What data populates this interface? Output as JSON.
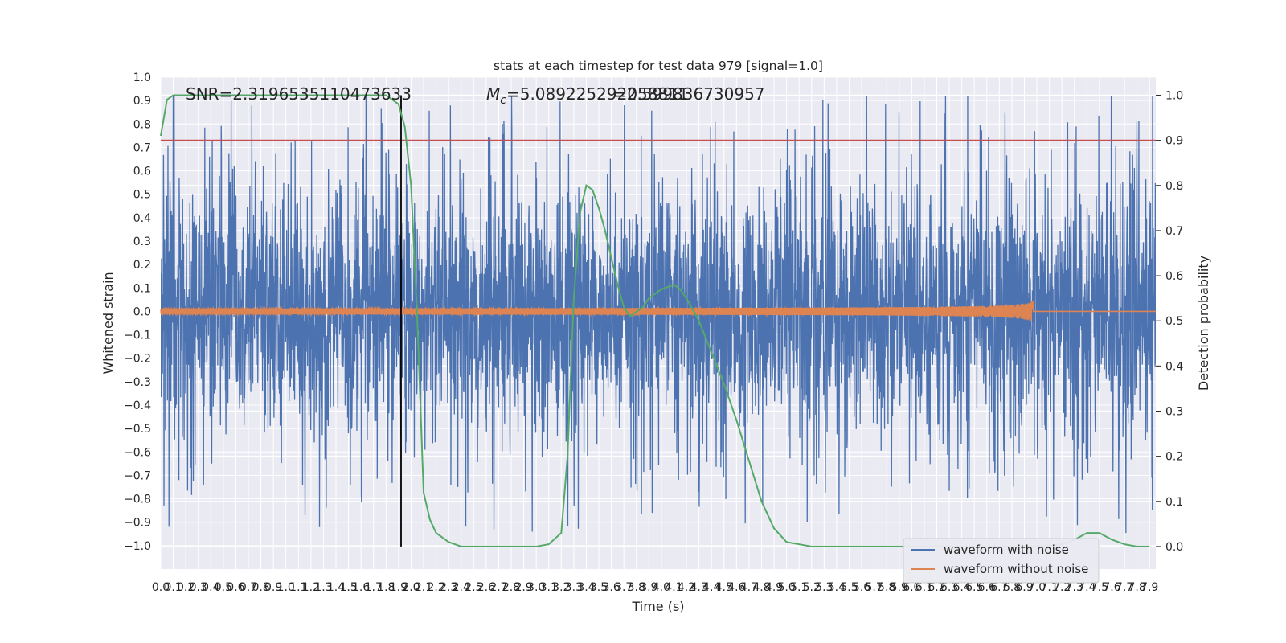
{
  "chart_data": {
    "type": "line",
    "title": "stats at each timestep for test data 979 [signal=1.0]",
    "xlabel": "Time (s)",
    "ylabel": "Whitened strain",
    "ylabel_right": "Detection probability",
    "xlim": [
      0.0,
      7.95
    ],
    "ylim": [
      -1.1,
      1.0
    ],
    "ylim_right": [
      -0.05,
      1.04
    ],
    "x_ticks": [
      "0.0",
      "0.1",
      "0.2",
      "0.3",
      "0.4",
      "0.5",
      "0.6",
      "0.7",
      "0.8",
      "0.9",
      "1.0",
      "1.1",
      "1.2",
      "1.3",
      "1.4",
      "1.5",
      "1.6",
      "1.7",
      "1.8",
      "1.9",
      "2.0",
      "2.1",
      "2.2",
      "2.3",
      "2.4",
      "2.5",
      "2.6",
      "2.7",
      "2.8",
      "2.9",
      "3.0",
      "3.1",
      "3.2",
      "3.3",
      "3.4",
      "3.5",
      "3.6",
      "3.7",
      "3.8",
      "3.9",
      "4.0",
      "4.1",
      "4.2",
      "4.3",
      "4.4",
      "4.5",
      "4.6",
      "4.7",
      "4.8",
      "4.9",
      "5.0",
      "5.1",
      "5.2",
      "5.3",
      "5.4",
      "5.5",
      "5.6",
      "5.7",
      "5.8",
      "5.9",
      "6.0",
      "6.1",
      "6.2",
      "6.3",
      "6.4",
      "6.5",
      "6.6",
      "6.7",
      "6.8",
      "6.9",
      "7.0",
      "7.1",
      "7.2",
      "7.3",
      "7.4",
      "7.5",
      "7.6",
      "7.7",
      "7.8",
      "7.9"
    ],
    "y_ticks": [
      "1.0",
      "0.9",
      "0.8",
      "0.7",
      "0.6",
      "0.5",
      "0.4",
      "0.3",
      "0.2",
      "0.1",
      "0.0",
      "−0.1",
      "−0.2",
      "−0.3",
      "−0.4",
      "−0.5",
      "−0.6",
      "−0.7",
      "−0.8",
      "−0.9",
      "−1.0"
    ],
    "y_ticks_right": [
      "1.0",
      "0.9",
      "0.8",
      "0.7",
      "0.6",
      "0.5",
      "0.4",
      "0.3",
      "0.2",
      "0.1",
      "0.0"
    ],
    "annotations": {
      "snr": "SNR=2.3196535110473633",
      "mc_prefix": "M",
      "mc_sub": "c",
      "mc_value": "=5.089225292058811",
      "overlap": "=2.599836730957"
    },
    "threshold": 0.9,
    "event_time": 1.92,
    "merger_time": 6.97,
    "grid": true,
    "legend_position": "lower-right",
    "series": [
      {
        "name": "waveform with noise",
        "color": "#4c72b0",
        "noise_amplitude_range": [
          -0.99,
          0.92
        ]
      },
      {
        "name": "waveform without noise",
        "color": "#dd8452",
        "peak_amplitude": 0.05
      },
      {
        "color": "#55a868",
        "x": [
          0.0,
          0.05,
          0.1,
          0.2,
          0.4,
          0.6,
          0.8,
          1.0,
          1.2,
          1.4,
          1.6,
          1.7,
          1.8,
          1.85,
          1.9,
          1.95,
          2.0,
          2.05,
          2.1,
          2.15,
          2.2,
          2.3,
          2.4,
          2.6,
          2.8,
          3.0,
          3.1,
          3.2,
          3.25,
          3.3,
          3.35,
          3.4,
          3.45,
          3.5,
          3.55,
          3.6,
          3.65,
          3.7,
          3.75,
          3.8,
          3.85,
          3.9,
          4.0,
          4.1,
          4.15,
          4.2,
          4.3,
          4.4,
          4.5,
          4.6,
          4.7,
          4.8,
          4.9,
          5.0,
          5.2,
          5.5,
          6.0,
          6.5,
          7.0,
          7.2,
          7.3,
          7.4,
          7.5,
          7.6,
          7.7,
          7.8,
          7.9
        ],
        "y": [
          0.91,
          0.99,
          1.0,
          1.0,
          1.0,
          1.0,
          1.0,
          1.0,
          1.0,
          1.0,
          1.0,
          1.0,
          1.0,
          0.99,
          0.98,
          0.93,
          0.8,
          0.5,
          0.12,
          0.06,
          0.03,
          0.01,
          0.0,
          0.0,
          0.0,
          0.0,
          0.005,
          0.03,
          0.2,
          0.55,
          0.74,
          0.8,
          0.79,
          0.75,
          0.7,
          0.64,
          0.58,
          0.53,
          0.51,
          0.52,
          0.53,
          0.55,
          0.57,
          0.58,
          0.57,
          0.55,
          0.5,
          0.43,
          0.36,
          0.28,
          0.19,
          0.1,
          0.04,
          0.01,
          0.0,
          0.0,
          0.0,
          0.0,
          0.0,
          0.005,
          0.015,
          0.03,
          0.03,
          0.015,
          0.005,
          0.0,
          0.0
        ]
      }
    ]
  }
}
